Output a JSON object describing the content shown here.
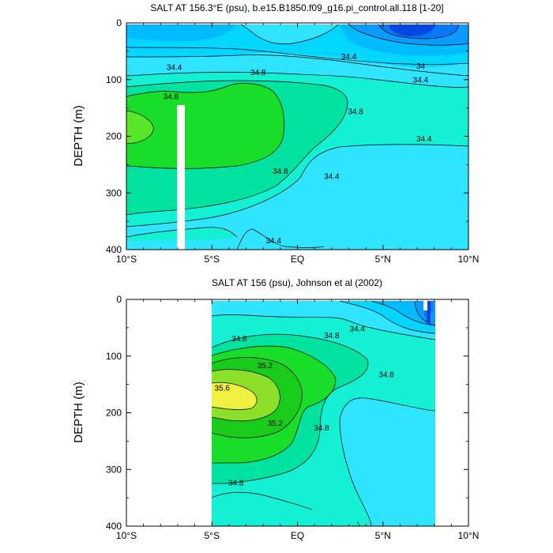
{
  "chart_data": [
    {
      "type": "heatmap",
      "subtype": "filled-contour",
      "title": "SALT AT 156.3°E (psu), b.e15.B1850.f09_g16.pi_control.all.118 [1-20]",
      "ylabel": "DEPTH (m)",
      "xlabel": "",
      "xlim": [
        -10,
        10
      ],
      "ylim": [
        400,
        0
      ],
      "y_inverted": true,
      "x_ticks": [
        {
          "value": -10,
          "label": "10°S"
        },
        {
          "value": -5,
          "label": "5°S"
        },
        {
          "value": 0,
          "label": "EQ"
        },
        {
          "value": 5,
          "label": "5°N"
        },
        {
          "value": 10,
          "label": "10°N"
        }
      ],
      "y_ticks": [
        0,
        100,
        200,
        300,
        400
      ],
      "grid": false,
      "contour_labels": [
        {
          "text": "34.4",
          "x": 3.0,
          "y": 60
        },
        {
          "text": "34",
          "x": 7.2,
          "y": 77
        },
        {
          "text": "34.4",
          "x": 7.2,
          "y": 101
        },
        {
          "text": "34.4",
          "x": -7.2,
          "y": 79
        },
        {
          "text": "34.8",
          "x": -2.3,
          "y": 88
        },
        {
          "text": "34.8",
          "x": -7.4,
          "y": 130
        },
        {
          "text": "34.8",
          "x": 3.4,
          "y": 157
        },
        {
          "text": "34.4",
          "x": 7.4,
          "y": 205
        },
        {
          "text": "34.8",
          "x": -1.0,
          "y": 262
        },
        {
          "text": "34.4",
          "x": 2.0,
          "y": 271
        },
        {
          "text": "34.4",
          "x": -1.4,
          "y": 385
        }
      ]
    },
    {
      "type": "heatmap",
      "subtype": "filled-contour",
      "title": "SALT AT 156 (psu), Johnson et al (2002)",
      "ylabel": "DEPTH (m)",
      "xlabel": "",
      "xlim": [
        -10,
        10
      ],
      "ylim": [
        400,
        0
      ],
      "y_inverted": true,
      "data_extent_x": [
        -5,
        8
      ],
      "x_ticks": [
        {
          "value": -10,
          "label": "10°S"
        },
        {
          "value": -5,
          "label": "5°S"
        },
        {
          "value": 0,
          "label": "EQ"
        },
        {
          "value": 5,
          "label": "5°N"
        },
        {
          "value": 10,
          "label": "10°N"
        }
      ],
      "y_ticks": [
        0,
        100,
        200,
        300,
        400
      ],
      "grid": false,
      "contour_labels": [
        {
          "text": "34.4",
          "x": 3.5,
          "y": 52
        },
        {
          "text": "34.8",
          "x": -3.4,
          "y": 70
        },
        {
          "text": "34.8",
          "x": 2.0,
          "y": 64
        },
        {
          "text": "35.2",
          "x": -1.9,
          "y": 117
        },
        {
          "text": "34.8",
          "x": 5.2,
          "y": 133
        },
        {
          "text": "35.6",
          "x": -4.4,
          "y": 157
        },
        {
          "text": "35.2",
          "x": -1.3,
          "y": 219
        },
        {
          "text": "34.8",
          "x": 1.4,
          "y": 227
        },
        {
          "text": "34.8",
          "x": -3.6,
          "y": 324
        }
      ]
    }
  ]
}
